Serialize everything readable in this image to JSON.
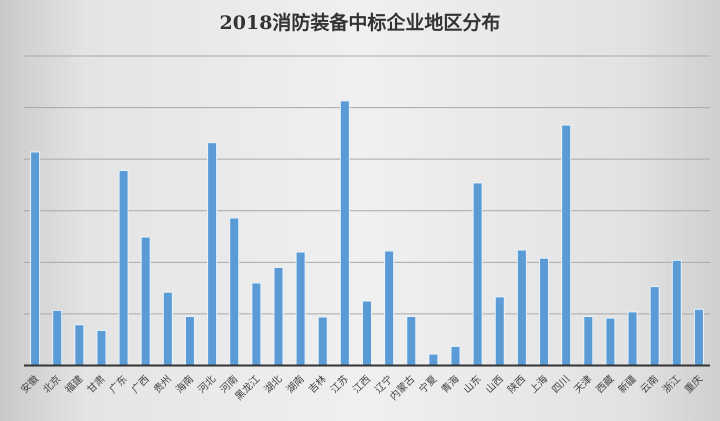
{
  "chart_data": {
    "type": "bar",
    "title": "2018消防装备中标企业地区分布",
    "xlabel": "",
    "ylabel": "",
    "ylim": [
      0,
      6
    ],
    "y_tick_labels_shown": false,
    "grid": true,
    "legend": "none",
    "bar_color": "#5b9bd5",
    "categories": [
      "安徽",
      "北京",
      "福建",
      "甘肃",
      "广东",
      "广西",
      "贵州",
      "海南",
      "河北",
      "河南",
      "黑龙江",
      "湖北",
      "湖南",
      "吉林",
      "江苏",
      "江西",
      "辽宁",
      "内蒙古",
      "宁夏",
      "青海",
      "山东",
      "山西",
      "陕西",
      "上海",
      "四川",
      "天津",
      "西藏",
      "新疆",
      "云南",
      "浙江",
      "重庆"
    ],
    "values": [
      4.13,
      1.06,
      0.78,
      0.67,
      3.77,
      2.48,
      1.41,
      0.94,
      4.31,
      2.85,
      1.59,
      1.89,
      2.19,
      0.93,
      5.12,
      1.24,
      2.21,
      0.94,
      0.21,
      0.36,
      3.53,
      1.32,
      2.23,
      2.07,
      4.65,
      0.94,
      0.91,
      1.03,
      1.52,
      2.03,
      1.08
    ]
  }
}
